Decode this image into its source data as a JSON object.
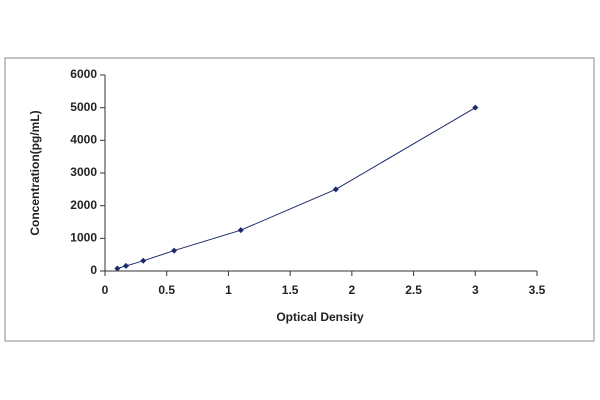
{
  "chart_data": {
    "type": "scatter",
    "x_label": "Optical Density",
    "y_label": "Concentration(pg/mL)",
    "series": [
      {
        "color": "#1a2a6c",
        "x": [
          0.1,
          0.17,
          0.31,
          0.56,
          1.1,
          1.87,
          3.0
        ],
        "values": [
          78,
          156,
          312,
          625,
          1250,
          2500,
          5000
        ]
      }
    ],
    "xlim": [
      0,
      3.5
    ],
    "xticks": [
      0,
      0.5,
      1,
      1.5,
      2,
      2.5,
      3,
      3.5
    ],
    "ylim": [
      0,
      6000
    ],
    "yticks": [
      0,
      1000,
      2000,
      3000,
      4000,
      5000,
      6000
    ],
    "line": true
  }
}
